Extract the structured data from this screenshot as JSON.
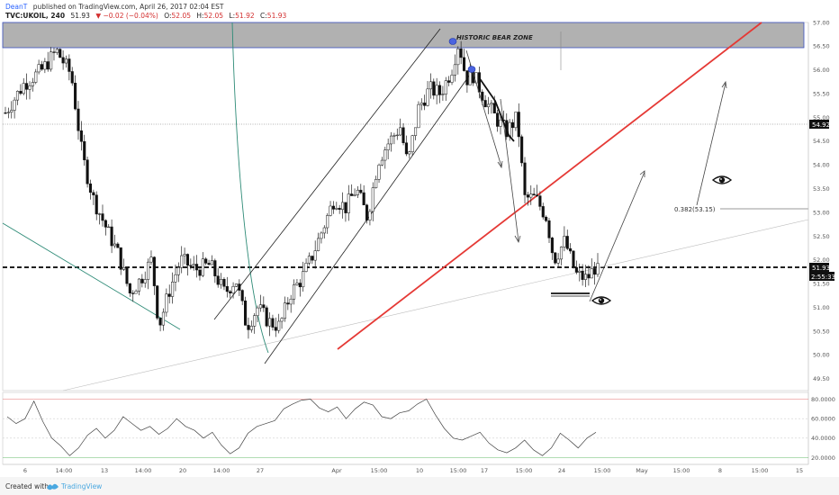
{
  "header": {
    "publisher": "DeanT",
    "published_text": "published on TradingView.com, April 26, 2017 02:04 EST",
    "symbol": "TVC:UKOIL, 240",
    "last": "51.93",
    "change": "▼ −0.02 (−0.04%)",
    "ohlc": {
      "O": "52.05",
      "H": "52.05",
      "L": "51.92",
      "C": "51.93"
    }
  },
  "footer": {
    "created_with": "Created with",
    "brand": "TradingView"
  },
  "annotations": {
    "zone_label": "HISTORIC BEAR ZONE",
    "fib_label": "0.382(53.15)",
    "last_price_tag": "51.93",
    "countdown_tag": "2:55:33",
    "level_tag": "54.92"
  },
  "chart_data": {
    "type": "candlestick",
    "symbol": "TVC:UKOIL",
    "interval": "240",
    "price_axis": {
      "range": [
        49.25,
        57.0
      ],
      "ticks": [
        "57.00",
        "56.50",
        "56.00",
        "55.50",
        "55.00",
        "54.50",
        "54.00",
        "53.50",
        "53.00",
        "52.50",
        "52.00",
        "51.50",
        "51.00",
        "50.50",
        "50.00",
        "49.50"
      ]
    },
    "time_axis": {
      "ticks": [
        "6",
        "14:00",
        "13",
        "14:00",
        "20",
        "14:00",
        "27",
        "Apr",
        "15:00",
        "10",
        "15:00",
        "17",
        "15:00",
        "24",
        "15:00",
        "May",
        "15:00",
        "8",
        "15:00",
        "15"
      ]
    },
    "close_path": [
      {
        "t": 0,
        "c": 55.1
      },
      {
        "t": 5,
        "c": 55.7
      },
      {
        "t": 10,
        "c": 56.0
      },
      {
        "t": 14,
        "c": 56.4
      },
      {
        "t": 18,
        "c": 55.9
      },
      {
        "t": 21,
        "c": 54.2
      },
      {
        "t": 24,
        "c": 53.3
      },
      {
        "t": 28,
        "c": 52.6
      },
      {
        "t": 31,
        "c": 52.1
      },
      {
        "t": 34,
        "c": 51.3
      },
      {
        "t": 37,
        "c": 51.6
      },
      {
        "t": 40,
        "c": 52.0
      },
      {
        "t": 42,
        "c": 50.6
      },
      {
        "t": 45,
        "c": 51.4
      },
      {
        "t": 48,
        "c": 52.0
      },
      {
        "t": 52,
        "c": 51.8
      },
      {
        "t": 56,
        "c": 51.9
      },
      {
        "t": 60,
        "c": 51.3
      },
      {
        "t": 63,
        "c": 51.6
      },
      {
        "t": 66,
        "c": 50.6
      },
      {
        "t": 69,
        "c": 51.0
      },
      {
        "t": 72,
        "c": 50.7
      },
      {
        "t": 75,
        "c": 50.6
      },
      {
        "t": 78,
        "c": 51.3
      },
      {
        "t": 81,
        "c": 51.6
      },
      {
        "t": 84,
        "c": 52.1
      },
      {
        "t": 87,
        "c": 52.7
      },
      {
        "t": 90,
        "c": 53.3
      },
      {
        "t": 93,
        "c": 53.1
      },
      {
        "t": 96,
        "c": 53.5
      },
      {
        "t": 99,
        "c": 52.9
      },
      {
        "t": 102,
        "c": 54.1
      },
      {
        "t": 105,
        "c": 54.5
      },
      {
        "t": 108,
        "c": 54.8
      },
      {
        "t": 110,
        "c": 54.0
      },
      {
        "t": 113,
        "c": 55.2
      },
      {
        "t": 116,
        "c": 55.6
      },
      {
        "t": 119,
        "c": 55.5
      },
      {
        "t": 122,
        "c": 56.0
      },
      {
        "t": 124,
        "c": 56.6
      },
      {
        "t": 126,
        "c": 55.8
      },
      {
        "t": 128,
        "c": 55.9
      },
      {
        "t": 131,
        "c": 55.4
      },
      {
        "t": 134,
        "c": 55.0
      },
      {
        "t": 137,
        "c": 54.7
      },
      {
        "t": 140,
        "c": 55.0
      },
      {
        "t": 142,
        "c": 53.3
      },
      {
        "t": 145,
        "c": 53.3
      },
      {
        "t": 148,
        "c": 52.9
      },
      {
        "t": 150,
        "c": 52.0
      },
      {
        "t": 153,
        "c": 52.4
      },
      {
        "t": 156,
        "c": 51.7
      },
      {
        "t": 159,
        "c": 51.6
      },
      {
        "t": 162,
        "c": 51.93
      }
    ],
    "rsi": {
      "levels": [
        20,
        40,
        60,
        80
      ],
      "range": [
        14,
        86
      ],
      "tick_labels": [
        "80.0000",
        "60.0000",
        "40.0000",
        "20.0000"
      ],
      "values": [
        62,
        55,
        60,
        78,
        57,
        40,
        32,
        22,
        30,
        43,
        50,
        40,
        48,
        62,
        55,
        48,
        52,
        44,
        50,
        60,
        52,
        48,
        40,
        46,
        33,
        24,
        30,
        45,
        52,
        55,
        58,
        70,
        75,
        79,
        80,
        71,
        67,
        72,
        60,
        70,
        77,
        74,
        62,
        60,
        66,
        68,
        75,
        80,
        64,
        50,
        40,
        38,
        42,
        46,
        35,
        28,
        25,
        30,
        38,
        28,
        22,
        30,
        45,
        38,
        30,
        40,
        46
      ]
    },
    "drawings": {
      "bear_zone": {
        "label": "HISTORIC BEAR ZONE",
        "from": 56.5,
        "to": 57.0
      },
      "horizontal_levels": [
        51.93,
        54.92
      ],
      "fib_level": {
        "label": "0.382(53.15)",
        "price": 53.15
      }
    }
  }
}
